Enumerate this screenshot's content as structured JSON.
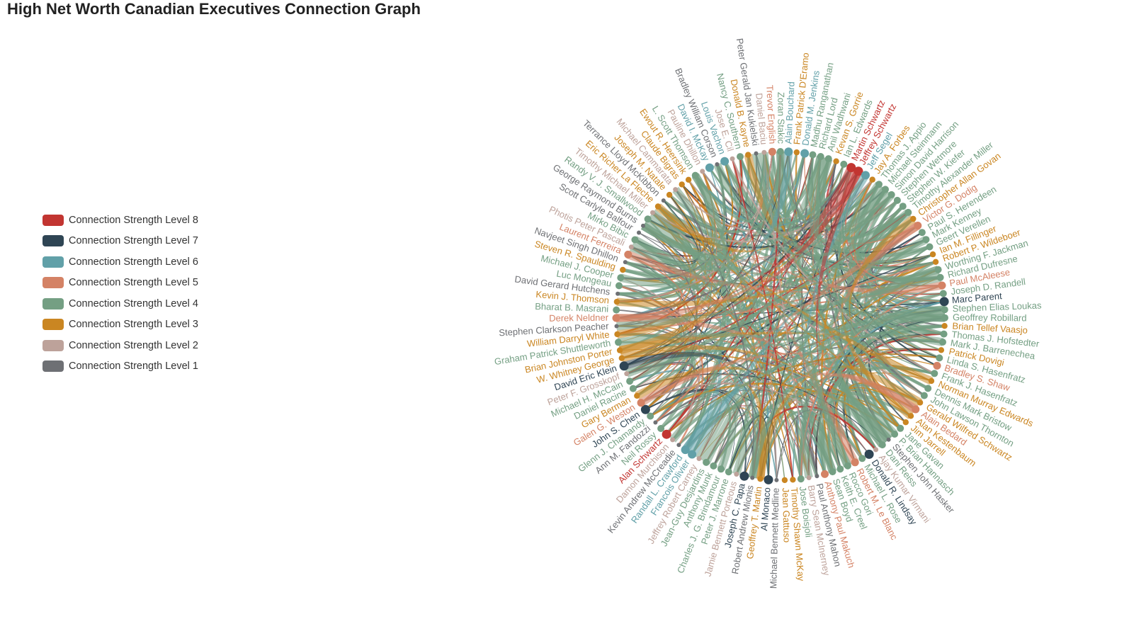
{
  "title": "High Net Worth Canadian Executives Connection Graph",
  "legend": [
    {
      "label": "Connection Strength Level 8",
      "color": "#c23531"
    },
    {
      "label": "Connection Strength Level 7",
      "color": "#2f4554"
    },
    {
      "label": "Connection Strength Level 6",
      "color": "#61a0a8"
    },
    {
      "label": "Connection Strength Level 5",
      "color": "#d48265"
    },
    {
      "label": "Connection Strength Level 4",
      "color": "#749f83"
    },
    {
      "label": "Connection Strength Level 3",
      "color": "#ca8622"
    },
    {
      "label": "Connection Strength Level 2",
      "color": "#bda29a"
    },
    {
      "label": "Connection Strength Level 1",
      "color": "#6e7074"
    }
  ],
  "nodes": [
    {
      "name": "Marc Parent",
      "level": 7
    },
    {
      "name": "Stephen Elias Loukas",
      "level": 4
    },
    {
      "name": "Geoffrey Robillard",
      "level": 4
    },
    {
      "name": "Brian Tellef Vaasjo",
      "level": 3
    },
    {
      "name": "Thomas J. Hofstedter",
      "level": 4
    },
    {
      "name": "Mark J. Barrenechea",
      "level": 4
    },
    {
      "name": "Patrick Dovigi",
      "level": 3
    },
    {
      "name": "Linda S. Hasenfratz",
      "level": 4
    },
    {
      "name": "Bradley S. Shaw",
      "level": 5
    },
    {
      "name": "Frank J. Hasenfratz",
      "level": 4
    },
    {
      "name": "Norman Murray Edwards",
      "level": 3
    },
    {
      "name": "Dennis Mark Bristow",
      "level": 4
    },
    {
      "name": "John Lawson Thornton",
      "level": 4
    },
    {
      "name": "Gerald Wilfred Schwartz",
      "level": 3
    },
    {
      "name": "Alain Bedard",
      "level": 5
    },
    {
      "name": "Alan Kestenbaum",
      "level": 3
    },
    {
      "name": "Jim Jarrell",
      "level": 3
    },
    {
      "name": "Jane Gavan",
      "level": 4
    },
    {
      "name": "P. Brian Hannasch",
      "level": 4
    },
    {
      "name": "Stephen John Hasker",
      "level": 1
    },
    {
      "name": "Dani Reiss",
      "level": 4
    },
    {
      "name": "Ajay Kumar Virmani",
      "level": 2
    },
    {
      "name": "Donald R. Lindsay",
      "level": 7
    },
    {
      "name": "Michael L. Rose",
      "level": 4
    },
    {
      "name": "Robert M. Le Blanc",
      "level": 5
    },
    {
      "name": "Rocco Gori",
      "level": 4
    },
    {
      "name": "Keith E. Creel",
      "level": 4
    },
    {
      "name": "Sean Boyd",
      "level": 4
    },
    {
      "name": "Anthony Paul Makuch",
      "level": 5
    },
    {
      "name": "Paul Anthony Mahon",
      "level": 1
    },
    {
      "name": "Barry Sean McInerney",
      "level": 2
    },
    {
      "name": "Jose Boisjoli",
      "level": 4
    },
    {
      "name": "Timothy Shawn McKay",
      "level": 3
    },
    {
      "name": "Jean Gattuso",
      "level": 3
    },
    {
      "name": "Michael Bennett Medline",
      "level": 1
    },
    {
      "name": "Al Monaco",
      "level": 7
    },
    {
      "name": "Geoffrey T. Martin",
      "level": 3
    },
    {
      "name": "Robert Andrew Mionis",
      "level": 1
    },
    {
      "name": "Joseph C. Papa",
      "level": 7
    },
    {
      "name": "Jamie Bennett Porteous",
      "level": 2
    },
    {
      "name": "Peter J. Marrone",
      "level": 4
    },
    {
      "name": "Charles J. G. Brindamour",
      "level": 4
    },
    {
      "name": "Anthony Munk",
      "level": 4
    },
    {
      "name": "Jean-Guy Desjardins",
      "level": 4
    },
    {
      "name": "Jeffrey Robert Carney",
      "level": 2
    },
    {
      "name": "Francois Olivier",
      "level": 6
    },
    {
      "name": "Randall L. Crawford",
      "level": 6
    },
    {
      "name": "Kevin Andrew McCreadie",
      "level": 1
    },
    {
      "name": "Damon Murchison",
      "level": 2
    },
    {
      "name": "Alan Schwartz",
      "level": 8
    },
    {
      "name": "Neil Rossy",
      "level": 4
    },
    {
      "name": "Ann M. Fandozzi",
      "level": 1
    },
    {
      "name": "Glenn J. Chamandy",
      "level": 4
    },
    {
      "name": "John S. Chen",
      "level": 7
    },
    {
      "name": "Galen G. Weston",
      "level": 5
    },
    {
      "name": "Gary Berman",
      "level": 3
    },
    {
      "name": "Daniel Racine",
      "level": 4
    },
    {
      "name": "Michael H. McCain",
      "level": 4
    },
    {
      "name": "Peter F. Grosskopf",
      "level": 2
    },
    {
      "name": "David Eric Klein",
      "level": 7
    },
    {
      "name": "W. Whitney George",
      "level": 3
    },
    {
      "name": "Brian Johnston Porter",
      "level": 3
    },
    {
      "name": "Graham Patrick Shuttleworth",
      "level": 4
    },
    {
      "name": "William Darryl White",
      "level": 3
    },
    {
      "name": "Stephen Clarkson Peacher",
      "level": 1
    },
    {
      "name": "Derek Neldner",
      "level": 5
    },
    {
      "name": "Bharat B. Masrani",
      "level": 4
    },
    {
      "name": "Kevin J. Thomson",
      "level": 3
    },
    {
      "name": "David Gerard Hutchens",
      "level": 1
    },
    {
      "name": "Luc Mongeau",
      "level": 4
    },
    {
      "name": "Michael J. Cooper",
      "level": 4
    },
    {
      "name": "Steven R. Spaulding",
      "level": 3
    },
    {
      "name": "Navjeet Singh Dhillon",
      "level": 1
    },
    {
      "name": "Laurent Ferreira",
      "level": 5
    },
    {
      "name": "Photis Peter Pascali",
      "level": 2
    },
    {
      "name": "Mirko Bibic",
      "level": 4
    },
    {
      "name": "Scott Carlyle Balfour",
      "level": 1
    },
    {
      "name": "George Raymond Burns",
      "level": 1
    },
    {
      "name": "Randy V. J. Smallwood",
      "level": 4
    },
    {
      "name": "Timothy Michael Miller",
      "level": 2
    },
    {
      "name": "Eric Richer La Fleche",
      "level": 3
    },
    {
      "name": "Terrance Lloyd McKibbon",
      "level": 1
    },
    {
      "name": "Joseph M. Natale",
      "level": 3
    },
    {
      "name": "Michael Cammarata",
      "level": 2
    },
    {
      "name": "Claude Bigras",
      "level": 3
    },
    {
      "name": "Ewout R. Heersink",
      "level": 3
    },
    {
      "name": "L. Scott Thomson",
      "level": 4
    },
    {
      "name": "Pauline Dhillon",
      "level": 2
    },
    {
      "name": "David I. McKay",
      "level": 6
    },
    {
      "name": "Bradley William Corson",
      "level": 1
    },
    {
      "name": "Louis Vachon",
      "level": 6
    },
    {
      "name": "Jose E. Cil",
      "level": 2
    },
    {
      "name": "Nancy C. Southern",
      "level": 4
    },
    {
      "name": "Donald B. Kayne",
      "level": 3
    },
    {
      "name": "Peter Gerald Jan Kukielski",
      "level": 1
    },
    {
      "name": "Daniel Baciu",
      "level": 2
    },
    {
      "name": "Trevor English",
      "level": 5
    },
    {
      "name": "Zoran Stakic",
      "level": 4
    },
    {
      "name": "Alain Bouchard",
      "level": 6
    },
    {
      "name": "Frank Patrick D'Eramo",
      "level": 3
    },
    {
      "name": "Donald M. Jenkins",
      "level": 6
    },
    {
      "name": "Madhu Ranganathan",
      "level": 4
    },
    {
      "name": "Richard Lord",
      "level": 4
    },
    {
      "name": "Anil Wadhwani",
      "level": 4
    },
    {
      "name": "Kevan S. Gorrie",
      "level": 3
    },
    {
      "name": "Ian L. Edwards",
      "level": 4
    },
    {
      "name": "Martin Schwartz",
      "level": 8
    },
    {
      "name": "Jeffrey Schwartz",
      "level": 8
    },
    {
      "name": "Jeff Segel",
      "level": 6
    },
    {
      "name": "Jay A. Forbes",
      "level": 3
    },
    {
      "name": "Thomas J. Appio",
      "level": 4
    },
    {
      "name": "Michael Steinmann",
      "level": 4
    },
    {
      "name": "Simon David Harrison",
      "level": 4
    },
    {
      "name": "Stephen Wetmore",
      "level": 4
    },
    {
      "name": "Stephen W. Kiefer",
      "level": 4
    },
    {
      "name": "Timothy Alexander Miller",
      "level": 4
    },
    {
      "name": "Christopher Allan Govan",
      "level": 3
    },
    {
      "name": "Victor G. Dodig",
      "level": 5
    },
    {
      "name": "Paul S. Herendeen",
      "level": 4
    },
    {
      "name": "Mark Kenney",
      "level": 4
    },
    {
      "name": "Geert Verellen",
      "level": 4
    },
    {
      "name": "Ian M. Fillinger",
      "level": 3
    },
    {
      "name": "Robert P. Wildeboer",
      "level": 3
    },
    {
      "name": "Worthing F. Jackman",
      "level": 4
    },
    {
      "name": "Richard Dufresne",
      "level": 4
    },
    {
      "name": "Paul McAleese",
      "level": 5
    },
    {
      "name": "Joseph D. Randell",
      "level": 4
    }
  ]
}
